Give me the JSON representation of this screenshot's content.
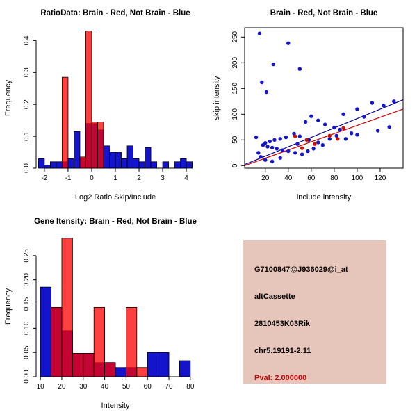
{
  "page": {
    "background": "#ffffff"
  },
  "info_panel": {
    "background": "#e6c6ba",
    "pval_color": "#cc0000",
    "lines": {
      "probe_id": "G7100847@J936029@i_at",
      "event_type": "altCassette",
      "gene_symbol": "2810453K03Rik",
      "locus": "chr5.19191-2.11",
      "pval": "Pval: 2.000000"
    }
  },
  "chart_data": [
    {
      "id": "ratio_hist",
      "type": "bar",
      "variant": "histogram-overlay",
      "title": "RatioData: Brain - Red, Not Brain - Blue",
      "xlabel": "Log2 Ratio Skip/Include",
      "ylabel": "Frequency",
      "xlim": [
        -2.35,
        4.35
      ],
      "ylim": [
        0,
        0.44
      ],
      "xticks": [
        -2,
        -1,
        0,
        1,
        2,
        3,
        4
      ],
      "yticks": [
        0,
        0.1,
        0.2,
        0.3,
        0.4
      ],
      "ytick_labels": [
        "0.0",
        "0.1",
        "0.2",
        "0.3",
        "0.4"
      ],
      "bin_width": 0.25,
      "legend_note": "Brain = red, Not Brain = blue (overlap appears purple)",
      "series": [
        {
          "name": "Not Brain",
          "color": "#1414cc",
          "opacity": 1,
          "bin_start": -2.25,
          "values": [
            0.03,
            0.01,
            0.02,
            0.02,
            0.02,
            0.03,
            0.115,
            0.03,
            0.14,
            0.14,
            0.12,
            0.07,
            0.05,
            0.05,
            0.03,
            0.07,
            0.03,
            0.02,
            0.065,
            0.02,
            0,
            0.02,
            0,
            0.02,
            0.03,
            0.02
          ]
        },
        {
          "name": "Brain",
          "color": "#ff0000",
          "opacity": 0.75,
          "bin_start": -1.25,
          "values": [
            0.285,
            0,
            0,
            0.035,
            0.43,
            0.145,
            0.145
          ]
        }
      ]
    },
    {
      "id": "intensity_scatter",
      "type": "scatter",
      "title": "Brain - Red, Not Brain - Blue",
      "xlabel": "include intensity",
      "ylabel": "skip intensity",
      "xlim": [
        2,
        140
      ],
      "ylim": [
        -5,
        268
      ],
      "xticks": [
        20,
        40,
        60,
        80,
        100,
        120
      ],
      "yticks": [
        0,
        50,
        100,
        150,
        200,
        250
      ],
      "ytick_labels": [
        "0",
        "50",
        "100",
        "150",
        "200",
        "250"
      ],
      "series": [
        {
          "name": "Not Brain",
          "color": "#1414cc",
          "points": [
            [
              15,
              257
            ],
            [
              40,
              238
            ],
            [
              27,
              197
            ],
            [
              50,
              188
            ],
            [
              17,
              162
            ],
            [
              21,
              143
            ],
            [
              132,
              125
            ],
            [
              113,
              122
            ],
            [
              123,
              117
            ],
            [
              100,
              110
            ],
            [
              88,
              100
            ],
            [
              106,
              95
            ],
            [
              60,
              96
            ],
            [
              55,
              85
            ],
            [
              66,
              88
            ],
            [
              72,
              80
            ],
            [
              80,
              74
            ],
            [
              85,
              70
            ],
            [
              95,
              63
            ],
            [
              118,
              68
            ],
            [
              128,
              75
            ],
            [
              45,
              62
            ],
            [
              50,
              57
            ],
            [
              38,
              55
            ],
            [
              33,
              52
            ],
            [
              28,
              50
            ],
            [
              24,
              47
            ],
            [
              20,
              44
            ],
            [
              18,
              40
            ],
            [
              22,
              37
            ],
            [
              26,
              35
            ],
            [
              30,
              33
            ],
            [
              35,
              30
            ],
            [
              40,
              28
            ],
            [
              46,
              25
            ],
            [
              52,
              22
            ],
            [
              57,
              28
            ],
            [
              62,
              33
            ],
            [
              66,
              45
            ],
            [
              70,
              40
            ],
            [
              76,
              52
            ],
            [
              82,
              58
            ],
            [
              90,
              52
            ],
            [
              14,
              25
            ],
            [
              16,
              17
            ],
            [
              20,
              11
            ],
            [
              26,
              8
            ],
            [
              33,
              15
            ],
            [
              48,
              42
            ],
            [
              58,
              50
            ],
            [
              100,
              60
            ],
            [
              12,
              55
            ]
          ]
        },
        {
          "name": "Brain",
          "color": "#cc1100",
          "points": [
            [
              46,
              57
            ],
            [
              56,
              50
            ],
            [
              63,
              42
            ],
            [
              76,
              58
            ],
            [
              83,
              52
            ],
            [
              88,
              73
            ],
            [
              52,
              34
            ]
          ]
        }
      ],
      "lines": [
        {
          "x1": 2,
          "y1": 2,
          "x2": 140,
          "y2": 128,
          "color": "#00008b"
        },
        {
          "x1": 2,
          "y1": 0,
          "x2": 140,
          "y2": 110,
          "color": "#cc0000"
        }
      ]
    },
    {
      "id": "gene_hist",
      "type": "bar",
      "variant": "histogram-overlay",
      "title": "Gene Itensity: Brain - Red, Not Brain - Blue",
      "xlabel": "Intensity",
      "ylabel": "Frequency",
      "xlim": [
        8,
        82
      ],
      "ylim": [
        0,
        0.29
      ],
      "xticks": [
        10,
        20,
        30,
        40,
        50,
        60,
        70,
        80
      ],
      "yticks": [
        0,
        0.05,
        0.1,
        0.15,
        0.2,
        0.25
      ],
      "ytick_labels": [
        "0.00",
        "0.05",
        "0.10",
        "0.15",
        "0.20",
        "0.25"
      ],
      "bin_width": 5,
      "legend_note": "Brain = red, Not Brain = blue (overlap appears purple)",
      "series": [
        {
          "name": "Not Brain",
          "color": "#1414cc",
          "opacity": 1,
          "bin_start": 10,
          "values": [
            0.185,
            0.143,
            0.095,
            0.048,
            0.048,
            0.029,
            0.029,
            0.019,
            0.019,
            0,
            0.05,
            0.05,
            0,
            0.033
          ]
        },
        {
          "name": "Brain",
          "color": "#ff0000",
          "opacity": 0.75,
          "bin_start": 15,
          "values": [
            0.143,
            0.286,
            0.048,
            0.048,
            0.143,
            0.029,
            0,
            0.143,
            0.019
          ]
        }
      ]
    }
  ]
}
